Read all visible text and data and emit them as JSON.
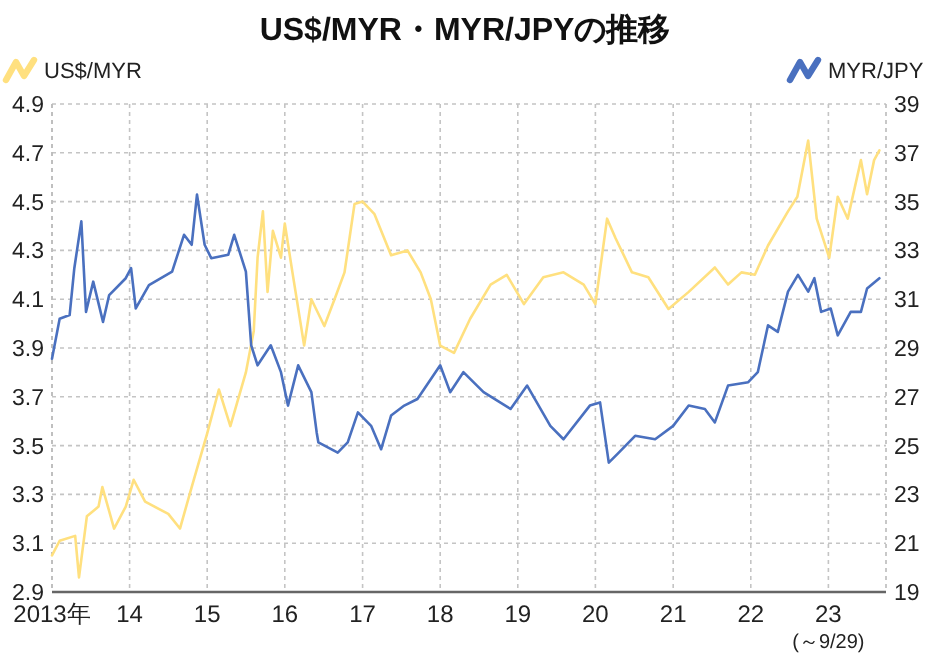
{
  "chart_data": {
    "type": "line",
    "title": "US$/MYR・MYR/JPYの推移",
    "annotations": [
      "(～9/29)"
    ],
    "legend": "top",
    "grid": true,
    "line_style": "solid",
    "marker": "none",
    "xlim": [
      "2013-01-01",
      "2023-09-29"
    ],
    "xticks": [
      {
        "value": "2013-01-01",
        "label": "2013年"
      },
      {
        "value": "2014-01-01",
        "label": "14"
      },
      {
        "value": "2015-01-01",
        "label": "15"
      },
      {
        "value": "2016-01-01",
        "label": "16"
      },
      {
        "value": "2017-01-01",
        "label": "17"
      },
      {
        "value": "2018-01-01",
        "label": "18"
      },
      {
        "value": "2019-01-01",
        "label": "19"
      },
      {
        "value": "2020-01-01",
        "label": "20"
      },
      {
        "value": "2021-01-01",
        "label": "21"
      },
      {
        "value": "2022-01-01",
        "label": "22"
      },
      {
        "value": "2023-01-01",
        "label": "23"
      }
    ],
    "ylim": [
      2.9,
      4.9
    ],
    "yticks": [
      2.9,
      3.1,
      3.3,
      3.5,
      3.7,
      3.9,
      4.1,
      4.3,
      4.5,
      4.7,
      4.9
    ],
    "y2lim": [
      19,
      39
    ],
    "y2ticks": [
      19,
      21,
      23,
      25,
      27,
      29,
      31,
      33,
      35,
      37,
      39
    ],
    "series": [
      {
        "name": "US$/MYR",
        "color": "#ffe07f",
        "axis": "y",
        "x": [
          "2013-01-01",
          "2013-02-06",
          "2013-04-20",
          "2013-05-08",
          "2013-06-14",
          "2013-08-08",
          "2013-08-26",
          "2013-10-20",
          "2013-12-14",
          "2014-01-20",
          "2014-03-15",
          "2014-07-02",
          "2014-08-26",
          "2014-10-20",
          "2015-01-01",
          "2015-02-25",
          "2015-04-20",
          "2015-07-02",
          "2015-08-08",
          "2015-08-26",
          "2015-09-20",
          "2015-10-12",
          "2015-11-06",
          "2015-12-14",
          "2016-01-01",
          "2016-02-06",
          "2016-04-01",
          "2016-05-05",
          "2016-07-05",
          "2016-08-22",
          "2016-10-08",
          "2016-11-24",
          "2017-01-01",
          "2017-02-25",
          "2017-05-15",
          "2017-07-31",
          "2017-10-01",
          "2017-11-18",
          "2018-01-01",
          "2018-03-07",
          "2018-05-22",
          "2018-08-26",
          "2018-11-10",
          "2019-01-30",
          "2019-05-01",
          "2019-08-04",
          "2019-11-07",
          "2020-01-01",
          "2020-02-25",
          "2020-04-05",
          "2020-06-21",
          "2020-09-06",
          "2020-12-10",
          "2021-03-15",
          "2021-07-16",
          "2021-09-16",
          "2021-11-18",
          "2022-01-20",
          "2022-03-23",
          "2022-06-25",
          "2022-08-08",
          "2022-09-28",
          "2022-11-07",
          "2023-01-05",
          "2023-02-14",
          "2023-04-02",
          "2023-06-03",
          "2023-07-02",
          "2023-08-04",
          "2023-08-29"
        ],
        "values": [
          3.05,
          3.11,
          3.13,
          2.96,
          3.21,
          3.25,
          3.33,
          3.16,
          3.25,
          3.36,
          3.27,
          3.22,
          3.16,
          3.33,
          3.55,
          3.73,
          3.58,
          3.8,
          3.97,
          4.27,
          4.46,
          4.13,
          4.38,
          4.27,
          4.41,
          4.21,
          3.91,
          4.1,
          3.99,
          4.1,
          4.21,
          4.49,
          4.5,
          4.45,
          4.28,
          4.3,
          4.21,
          4.1,
          3.91,
          3.88,
          4.02,
          4.16,
          4.2,
          4.08,
          4.19,
          4.21,
          4.16,
          4.08,
          4.43,
          4.35,
          4.21,
          4.19,
          4.06,
          4.13,
          4.23,
          4.16,
          4.21,
          4.2,
          4.32,
          4.46,
          4.52,
          4.75,
          4.43,
          4.27,
          4.52,
          4.43,
          4.67,
          4.53,
          4.67,
          4.71
        ]
      },
      {
        "name": "MYR/JPY",
        "color": "#4a70bf",
        "axis": "y2",
        "x": [
          "2013-01-01",
          "2013-02-06",
          "2013-03-25",
          "2013-04-16",
          "2013-05-19",
          "2013-06-10",
          "2013-07-14",
          "2013-08-29",
          "2013-09-27",
          "2013-12-14",
          "2014-01-08",
          "2014-01-30",
          "2014-04-02",
          "2014-07-20",
          "2014-09-14",
          "2014-10-20",
          "2014-11-14",
          "2014-12-20",
          "2015-01-20",
          "2015-04-10",
          "2015-05-08",
          "2015-07-02",
          "2015-07-27",
          "2015-08-26",
          "2015-10-27",
          "2015-12-14",
          "2016-01-16",
          "2016-03-04",
          "2016-05-05",
          "2016-05-30",
          "2016-06-07",
          "2016-09-06",
          "2016-10-23",
          "2016-12-10",
          "2017-02-10",
          "2017-03-29",
          "2017-05-15",
          "2017-07-16",
          "2017-09-16",
          "2018-01-01",
          "2018-02-17",
          "2018-04-20",
          "2018-07-24",
          "2018-11-28",
          "2019-02-14",
          "2019-06-03",
          "2019-08-04",
          "2019-12-06",
          "2020-01-23",
          "2020-03-04",
          "2020-04-20",
          "2020-07-06",
          "2020-10-08",
          "2021-01-01",
          "2021-03-15",
          "2021-05-30",
          "2021-07-16",
          "2021-09-16",
          "2021-12-20",
          "2022-02-03",
          "2022-03-23",
          "2022-05-08",
          "2022-06-25",
          "2022-08-11",
          "2022-09-28",
          "2022-10-27",
          "2022-11-28",
          "2023-01-12",
          "2023-02-14",
          "2023-04-16",
          "2023-06-03",
          "2023-07-02",
          "2023-08-29"
        ],
        "values": [
          28.56,
          30.2,
          30.35,
          32.27,
          34.19,
          30.48,
          31.72,
          30.07,
          31.17,
          31.86,
          32.27,
          30.62,
          31.58,
          32.13,
          33.64,
          33.23,
          35.29,
          33.23,
          32.68,
          32.82,
          33.64,
          32.13,
          29.11,
          28.29,
          29.11,
          28.01,
          26.64,
          28.29,
          27.19,
          25.54,
          25.13,
          24.71,
          25.13,
          26.36,
          25.81,
          24.85,
          26.23,
          26.64,
          26.91,
          28.29,
          27.19,
          28.01,
          27.19,
          26.5,
          27.46,
          25.81,
          25.26,
          26.64,
          26.77,
          24.3,
          24.71,
          25.4,
          25.26,
          25.81,
          26.64,
          26.5,
          25.95,
          27.46,
          27.6,
          28.01,
          29.93,
          29.66,
          31.31,
          32.0,
          31.31,
          31.86,
          30.48,
          30.62,
          29.52,
          30.48,
          30.48,
          31.44,
          31.86
        ]
      }
    ]
  }
}
